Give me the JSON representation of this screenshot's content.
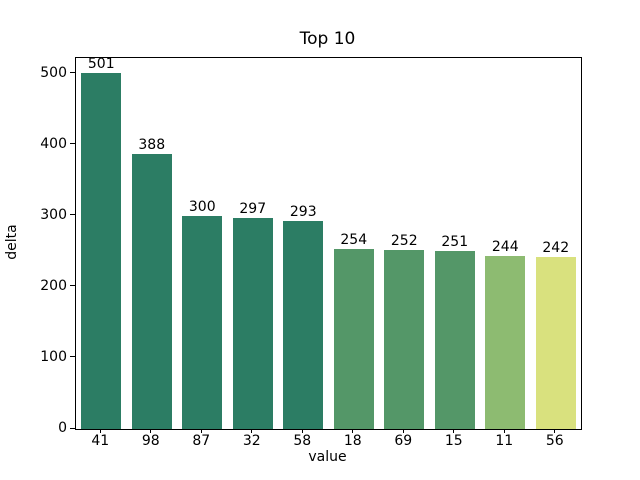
{
  "chart_data": {
    "type": "bar",
    "title": "Top 10",
    "xlabel": "value",
    "ylabel": "delta",
    "categories": [
      "41",
      "98",
      "87",
      "32",
      "58",
      "18",
      "69",
      "15",
      "11",
      "56"
    ],
    "values": [
      501,
      388,
      300,
      297,
      293,
      254,
      252,
      251,
      244,
      242
    ],
    "bar_labels": [
      "501",
      "388",
      "300",
      "297",
      "293",
      "254",
      "252",
      "251",
      "244",
      "242"
    ],
    "bar_colors": [
      "#2c7d64",
      "#2c7d64",
      "#2c7d64",
      "#2c7d64",
      "#2c7d64",
      "#549768",
      "#549768",
      "#549768",
      "#8dbb71",
      "#d9e17e"
    ],
    "yticks": [
      0,
      100,
      200,
      300,
      400,
      500
    ],
    "ylim": [
      0,
      522.5
    ],
    "bar_width_fraction": 0.8,
    "grid": false,
    "legend": null,
    "background_color": "#ffffff",
    "spine_color": "#000000",
    "text_color": "#000000"
  }
}
